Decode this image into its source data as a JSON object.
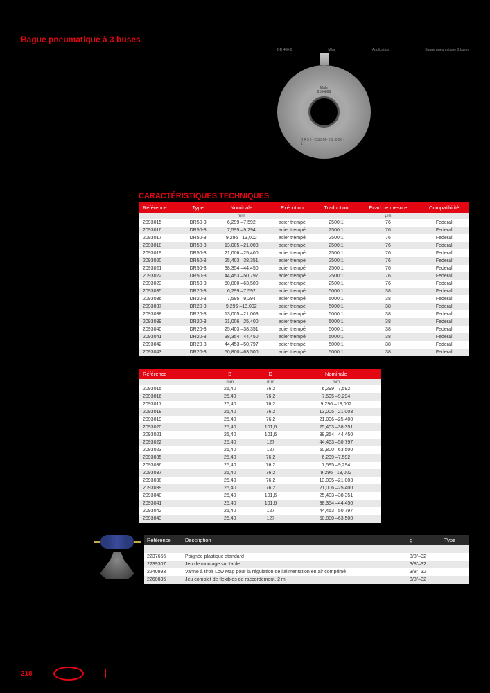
{
  "page": {
    "title": "Bague pneumatique à 3 buses",
    "section_heading": "CARACTÉRISTIQUES TECHNIQUES",
    "page_number": "218"
  },
  "meta": {
    "code": "DR 400-5",
    "col1_label": "Mhar",
    "col2_label": "Application",
    "col3_label": "Bague pneumatique 3 buses"
  },
  "ring": {
    "brand": "Mahr",
    "serial": "2104808",
    "code": "DR50-CS2M-25.000-1",
    "side": "1715"
  },
  "table1": {
    "columns": [
      "Référence",
      "Type",
      "Nominale",
      "Exécution",
      "Traduction",
      "Écart de mesure",
      "Compatibilité"
    ],
    "units": [
      "",
      "",
      "mm",
      "",
      "",
      "µm",
      ""
    ],
    "rows": [
      [
        "2093015",
        "DR50-3",
        "6,299 –7,592",
        "acier trempé",
        "2500:1",
        "76",
        "Federal"
      ],
      [
        "2093016",
        "DR50-3",
        "7,595 –9,294",
        "acier trempé",
        "2500:1",
        "76",
        "Federal"
      ],
      [
        "2093017",
        "DR50-3",
        "9,296 –13,002",
        "acier trempé",
        "2500:1",
        "76",
        "Federal"
      ],
      [
        "2093018",
        "DR50-3",
        "13,005 –21,003",
        "acier trempé",
        "2500:1",
        "76",
        "Federal"
      ],
      [
        "2093019",
        "DR50-3",
        "21,006 –25,400",
        "acier trempé",
        "2500:1",
        "76",
        "Federal"
      ],
      [
        "2093020",
        "DR50-3",
        "25,403 –38,351",
        "acier trempé",
        "2500:1",
        "76",
        "Federal"
      ],
      [
        "2093021",
        "DR50-3",
        "38,354 –44,450",
        "acier trempé",
        "2500:1",
        "76",
        "Federal"
      ],
      [
        "2093022",
        "DR50-3",
        "44,453 –50,797",
        "acier trempé",
        "2500:1",
        "76",
        "Federal"
      ],
      [
        "2093023",
        "DR50-3",
        "50,800 –63,500",
        "acier trempé",
        "2500:1",
        "76",
        "Federal"
      ],
      [
        "2093035",
        "DR20-3",
        "6,299 –7,592",
        "acier trempé",
        "5000:1",
        "38",
        "Federal"
      ],
      [
        "2093036",
        "DR20-3",
        "7,595 –9,294",
        "acier trempé",
        "5000:1",
        "38",
        "Federal"
      ],
      [
        "2093037",
        "DR20-3",
        "9,296 –13,002",
        "acier trempé",
        "5000:1",
        "38",
        "Federal"
      ],
      [
        "2093038",
        "DR20-3",
        "13,005 –21,003",
        "acier trempé",
        "5000:1",
        "38",
        "Federal"
      ],
      [
        "2093039",
        "DR20-3",
        "21,006 –25,400",
        "acier trempé",
        "5000:1",
        "38",
        "Federal"
      ],
      [
        "2093040",
        "DR20-3",
        "25,403 –38,351",
        "acier trempé",
        "5000:1",
        "38",
        "Federal"
      ],
      [
        "2093041",
        "DR20-3",
        "38,354 –44,450",
        "acier trempé",
        "5000:1",
        "38",
        "Federal"
      ],
      [
        "2093042",
        "DR20-3",
        "44,453 –50,797",
        "acier trempé",
        "5000:1",
        "38",
        "Federal"
      ],
      [
        "2093043",
        "DR20-3",
        "50,800 –63,500",
        "acier trempé",
        "5000:1",
        "38",
        "Federal"
      ]
    ]
  },
  "table2": {
    "columns": [
      "Référence",
      "B",
      "D",
      "Nominale"
    ],
    "units": [
      "",
      "mm",
      "mm",
      "mm"
    ],
    "rows": [
      [
        "2093015",
        "25,40",
        "76,2",
        "6,299 –7,592"
      ],
      [
        "2093016",
        "25,40",
        "76,2",
        "7,595 –9,294"
      ],
      [
        "2093017",
        "25,40",
        "76,2",
        "9,296 –13,002"
      ],
      [
        "2093018",
        "25,40",
        "76,2",
        "13,005 –21,003"
      ],
      [
        "2093019",
        "25,40",
        "76,2",
        "21,006 –25,400"
      ],
      [
        "2093020",
        "25,40",
        "101,6",
        "25,403 –38,351"
      ],
      [
        "2093021",
        "25,40",
        "101,6",
        "38,354 –44,450"
      ],
      [
        "2093022",
        "25,40",
        "127",
        "44,453 –50,797"
      ],
      [
        "2093023",
        "25,40",
        "127",
        "50,800 –63,500"
      ],
      [
        "2093035",
        "25,40",
        "76,2",
        "6,299 –7,592"
      ],
      [
        "2093036",
        "25,40",
        "76,2",
        "7,595 –9,294"
      ],
      [
        "2093037",
        "25,40",
        "76,2",
        "9,296 –13,002"
      ],
      [
        "2093038",
        "25,40",
        "76,2",
        "13,005 –21,003"
      ],
      [
        "2093039",
        "25,40",
        "76,2",
        "21,006 –25,400"
      ],
      [
        "2093040",
        "25,40",
        "101,6",
        "25,403 –38,351"
      ],
      [
        "2093041",
        "25,40",
        "101,6",
        "38,354 –44,450"
      ],
      [
        "2093042",
        "25,40",
        "127",
        "44,453 –50,797"
      ],
      [
        "2093043",
        "25,40",
        "127",
        "50,800 –63,500"
      ]
    ]
  },
  "table3": {
    "columns": [
      "Référence",
      "Description",
      "g",
      "Type"
    ],
    "rows": [
      [
        "2237666",
        "Poignée plastique standard",
        "3/8\"–32",
        ""
      ],
      [
        "2239307",
        "Jeu de montage sur table",
        "3/8\"–32",
        ""
      ],
      [
        "2240993",
        "Vanne à tiroir Low Mag pour la régulation de l'alimentation en air comprimé",
        "3/8\"–32",
        ""
      ],
      [
        "2260835",
        "Jeu complet de flexibles de raccordement, 2 m",
        "3/8\"–32",
        ""
      ]
    ]
  },
  "colors": {
    "brand": "#e30613",
    "header_dark": "#2a2a2a",
    "row_alt": "#e8e8e8",
    "bg": "#000000"
  }
}
